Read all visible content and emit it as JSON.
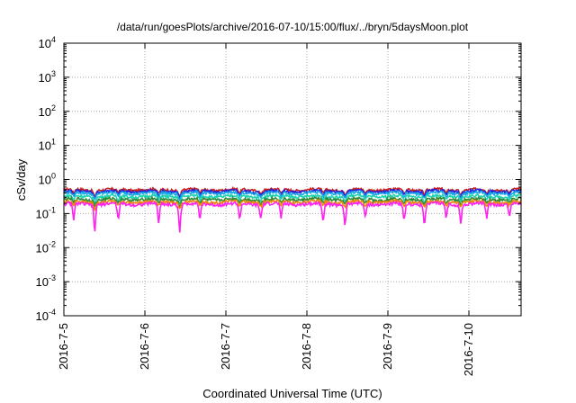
{
  "chart_data": {
    "type": "line",
    "title": "/data/run/goesPlots/archive/2016-07-10/15:00/flux/../bryn/5daysMoon.plot",
    "xlabel": "Coordinated Universal Time (UTC)",
    "ylabel": "cSv/day",
    "yscale": "log",
    "ylim": [
      0.0001,
      10000
    ],
    "xlim": [
      "2016-07-05 00:00",
      "2016-07-10 15:00"
    ],
    "x_ticks": [
      "2016-7-5",
      "2016-7-6",
      "2016-7-7",
      "2016-7-8",
      "2016-7-9",
      "2016-7-10"
    ],
    "y_ticks": [
      {
        "base": "10",
        "exp": "-4",
        "value": 0.0001
      },
      {
        "base": "10",
        "exp": "-3",
        "value": 0.001
      },
      {
        "base": "10",
        "exp": "-2",
        "value": 0.01
      },
      {
        "base": "10",
        "exp": "-1",
        "value": 0.1
      },
      {
        "base": "10",
        "exp": "0",
        "value": 1
      },
      {
        "base": "10",
        "exp": "1",
        "value": 10
      },
      {
        "base": "10",
        "exp": "2",
        "value": 100
      },
      {
        "base": "10",
        "exp": "3",
        "value": 1000
      },
      {
        "base": "10",
        "exp": "4",
        "value": 10000
      }
    ],
    "grid": true,
    "dips": [
      {
        "day": 0.12,
        "depth": 0.55
      },
      {
        "day": 0.38,
        "depth": 0.75
      },
      {
        "day": 0.67,
        "depth": 0.55
      },
      {
        "day": 1.17,
        "depth": 0.6
      },
      {
        "day": 1.43,
        "depth": 0.8
      },
      {
        "day": 1.68,
        "depth": 0.55
      },
      {
        "day": 2.17,
        "depth": 0.55
      },
      {
        "day": 2.43,
        "depth": 0.5
      },
      {
        "day": 2.68,
        "depth": 0.5
      },
      {
        "day": 3.2,
        "depth": 0.55
      },
      {
        "day": 3.47,
        "depth": 0.65
      },
      {
        "day": 3.72,
        "depth": 0.5
      },
      {
        "day": 4.2,
        "depth": 0.55
      },
      {
        "day": 4.45,
        "depth": 0.6
      },
      {
        "day": 4.72,
        "depth": 0.5
      },
      {
        "day": 4.9,
        "depth": 0.6
      },
      {
        "day": 5.22,
        "depth": 0.5
      },
      {
        "day": 5.5,
        "depth": 0.45
      }
    ],
    "series": [
      {
        "base": 0.5,
        "color": "#cc1e1e",
        "noise": 0.04
      },
      {
        "base": 0.45,
        "color": "#2222dd",
        "noise": 0.04
      },
      {
        "base": 0.4,
        "color": "#16a5e8",
        "noise": 0.035
      },
      {
        "base": 0.32,
        "color": "#1fd2b0",
        "noise": 0.03
      },
      {
        "base": 0.26,
        "color": "#2a8a3a",
        "noise": 0.025
      },
      {
        "base": 0.22,
        "color": "#ee8800",
        "noise": 0.02
      },
      {
        "base": 0.19,
        "color": "#ff22ee",
        "noise": 0.02
      }
    ]
  }
}
